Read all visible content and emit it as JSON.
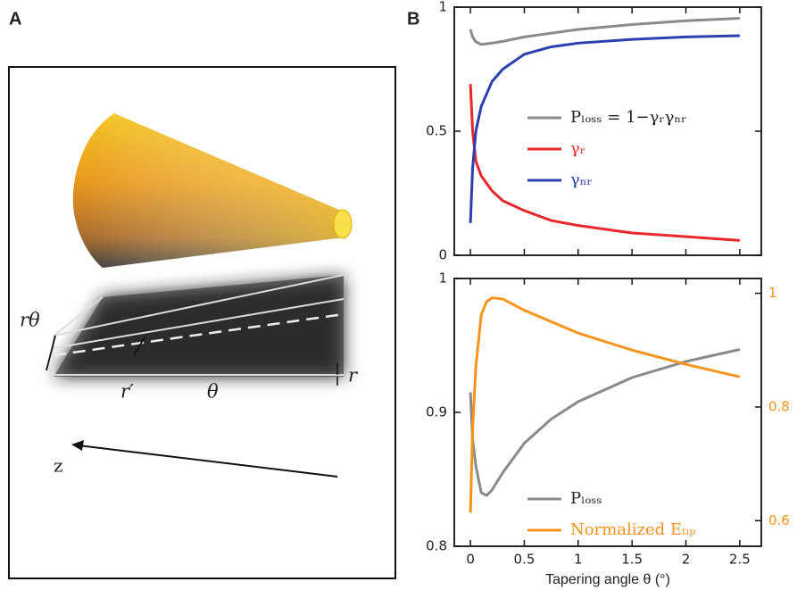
{
  "panel_a": {
    "label": "A",
    "r_theta": "rθ",
    "r_prime": "r′",
    "theta": "θ",
    "r": "r",
    "z": "z"
  },
  "panel_b": {
    "label": "B"
  },
  "chart_data": [
    {
      "type": "line",
      "x": [
        0,
        0.02,
        0.05,
        0.1,
        0.2,
        0.3,
        0.5,
        0.75,
        1,
        1.5,
        2,
        2.5
      ],
      "xlim": [
        -0.15,
        2.7
      ],
      "xticks": [
        0,
        0.5,
        1,
        1.5,
        2,
        2.5
      ],
      "ylim": [
        0,
        1
      ],
      "yticks": [
        0,
        0.5,
        1
      ],
      "legend": "center-right",
      "series": [
        {
          "name": "Pₗₒₛₛ = 1−γᵣγₙᵣ",
          "color": "#8a8a8a",
          "label_color": "#222222",
          "values": [
            0.91,
            0.88,
            0.86,
            0.85,
            0.855,
            0.862,
            0.88,
            0.895,
            0.91,
            0.93,
            0.945,
            0.955
          ]
        },
        {
          "name": "γᵣ",
          "color": "#e8282a",
          "label_color": "#e8282a",
          "values": [
            0.69,
            0.5,
            0.38,
            0.32,
            0.26,
            0.22,
            0.18,
            0.14,
            0.12,
            0.09,
            0.075,
            0.06
          ]
        },
        {
          "name": "γₙᵣ",
          "color": "#2b3fb0",
          "label_color": "#2b3fb0",
          "values": [
            0.13,
            0.35,
            0.5,
            0.6,
            0.7,
            0.75,
            0.81,
            0.84,
            0.855,
            0.87,
            0.88,
            0.885
          ]
        }
      ]
    },
    {
      "type": "line",
      "x": [
        0,
        0.02,
        0.05,
        0.1,
        0.15,
        0.2,
        0.3,
        0.5,
        0.75,
        1,
        1.5,
        2,
        2.5
      ],
      "xlim": [
        -0.15,
        2.7
      ],
      "xticks": [
        0,
        0.5,
        1,
        1.5,
        2,
        2.5
      ],
      "x_label": "Tapering angle θ (°)",
      "ylim": [
        0.8,
        1
      ],
      "yticks": [
        0.8,
        0.9,
        1
      ],
      "y2lim": [
        0.555,
        1.026
      ],
      "y2ticks": [
        0.6,
        0.8,
        1
      ],
      "y2_color": "#f7941d",
      "legend": "lower-right",
      "series": [
        {
          "name": "Pₗₒₛₛ",
          "color": "#8a8a8a",
          "label_color": "#222222",
          "values": [
            0.915,
            0.88,
            0.86,
            0.84,
            0.838,
            0.842,
            0.855,
            0.877,
            0.895,
            0.908,
            0.926,
            0.938,
            0.947
          ]
        },
        {
          "name": "Normalized Eₜᵢₚ",
          "color": "#f7941d",
          "label_color": "#f7941d",
          "axis": "y2",
          "values": [
            0.614,
            0.76,
            0.87,
            0.962,
            0.985,
            0.992,
            0.99,
            0.97,
            0.95,
            0.93,
            0.9,
            0.875,
            0.853
          ]
        }
      ]
    }
  ]
}
